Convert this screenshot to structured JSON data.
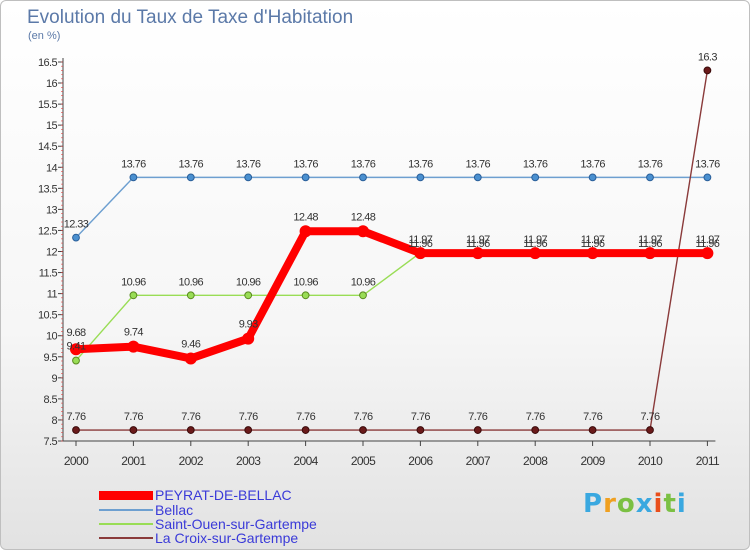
{
  "header": {
    "title": "Evolution du Taux de Taxe d'Habitation",
    "unit": "(en %)"
  },
  "logo": {
    "text": "Proxiti",
    "colors": [
      "#3aa8e0",
      "#f0a020",
      "#7bc043",
      "#3aa8e0",
      "#e94e1b",
      "#7bc043",
      "#3aa8e0"
    ]
  },
  "chart_data": {
    "type": "line",
    "title": "Evolution du Taux de Taxe d'Habitation",
    "ylabel": "(en %)",
    "xlabel": "",
    "ylim": [
      7.5,
      16.5
    ],
    "yticks": [
      "7.5",
      "8",
      "8.5",
      "9",
      "9.5",
      "10",
      "10.5",
      "11",
      "11.5",
      "12",
      "12.5",
      "13",
      "13.5",
      "14",
      "14.5",
      "15",
      "15.5",
      "16",
      "16.5"
    ],
    "categories": [
      "2000",
      "2001",
      "2002",
      "2003",
      "2004",
      "2005",
      "2006",
      "2007",
      "2008",
      "2009",
      "2010",
      "2011"
    ],
    "grid": false,
    "legend_position": "bottom-left",
    "series": [
      {
        "name": "PEYRAT-DE-BELLAC",
        "color": "#ff0000",
        "values": [
          9.68,
          9.74,
          9.46,
          9.93,
          12.48,
          12.48,
          11.96,
          11.96,
          11.96,
          11.96,
          11.96,
          11.96
        ],
        "labels": [
          "9.68",
          "9.74",
          "9.46",
          "9.93",
          "12.48",
          "12.48",
          "11.96",
          "11.96",
          "11.96",
          "11.96",
          "11.96",
          "11.96"
        ]
      },
      {
        "name": "Bellac",
        "color": "#6d9fd0",
        "values": [
          12.33,
          13.76,
          13.76,
          13.76,
          13.76,
          13.76,
          13.76,
          13.76,
          13.76,
          13.76,
          13.76,
          13.76
        ],
        "labels": [
          "12.33",
          "13.76",
          "13.76",
          "13.76",
          "13.76",
          "13.76",
          "13.76",
          "13.76",
          "13.76",
          "13.76",
          "13.76",
          "13.76"
        ]
      },
      {
        "name": "Saint-Ouen-sur-Gartempe",
        "color": "#99dd55",
        "values": [
          9.41,
          10.96,
          10.96,
          10.96,
          10.96,
          10.96,
          11.97,
          11.97,
          11.97,
          11.97,
          11.97,
          11.97
        ],
        "labels": [
          "9.41",
          "10.96",
          "10.96",
          "10.96",
          "10.96",
          "10.96",
          "11.97",
          "11.97",
          "11.97",
          "11.97",
          "11.97",
          "11.97"
        ]
      },
      {
        "name": "La Croix-sur-Gartempe",
        "color": "#8a3a3a",
        "values": [
          7.76,
          7.76,
          7.76,
          7.76,
          7.76,
          7.76,
          7.76,
          7.76,
          7.76,
          7.76,
          7.76,
          16.3
        ],
        "labels": [
          "7.76",
          "7.76",
          "7.76",
          "7.76",
          "7.76",
          "7.76",
          "7.76",
          "7.76",
          "7.76",
          "7.76",
          "7.76",
          "16.3"
        ]
      }
    ]
  }
}
